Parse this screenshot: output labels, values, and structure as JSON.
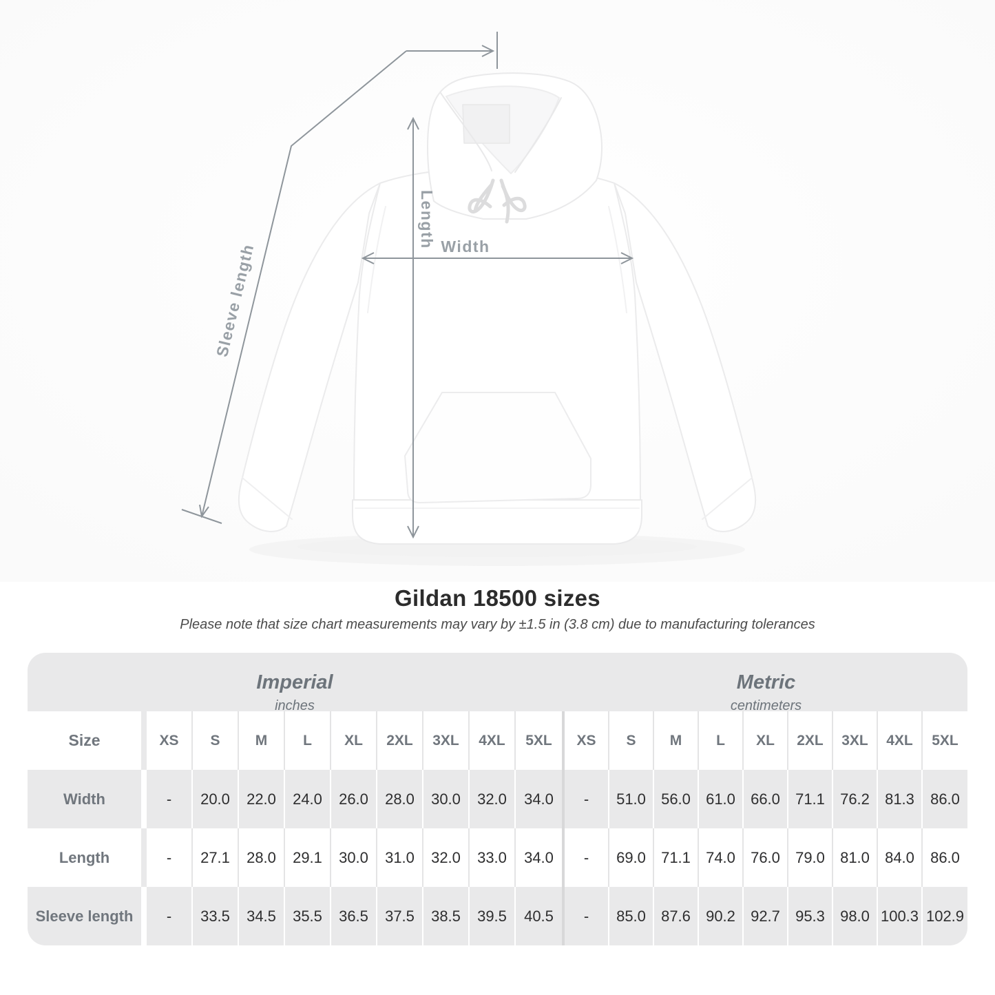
{
  "title": "Gildan 18500 sizes",
  "subtitle": "Please note that size chart measurements may vary by ±1.5 in (3.8 cm) due to manufacturing tolerances",
  "diagram": {
    "sleeve_label": "Sleeve length",
    "length_label": "Length",
    "width_label": "Width"
  },
  "table": {
    "size_header": "Size",
    "sections": [
      {
        "name": "Imperial",
        "unit": "inches"
      },
      {
        "name": "Metric",
        "unit": "centimeters"
      }
    ],
    "columns": [
      "XS",
      "S",
      "M",
      "L",
      "XL",
      "2XL",
      "3XL",
      "4XL",
      "5XL"
    ],
    "rows": [
      {
        "label": "Width",
        "imperial": [
          "-",
          "20.0",
          "22.0",
          "24.0",
          "26.0",
          "28.0",
          "30.0",
          "32.0",
          "34.0"
        ],
        "metric": [
          "-",
          "51.0",
          "56.0",
          "61.0",
          "66.0",
          "71.1",
          "76.2",
          "81.3",
          "86.0"
        ]
      },
      {
        "label": "Length",
        "imperial": [
          "-",
          "27.1",
          "28.0",
          "29.1",
          "30.0",
          "31.0",
          "32.0",
          "33.0",
          "34.0"
        ],
        "metric": [
          "-",
          "69.0",
          "71.1",
          "74.0",
          "76.0",
          "79.0",
          "81.0",
          "84.0",
          "86.0"
        ]
      },
      {
        "label": "Sleeve length",
        "imperial": [
          "-",
          "33.5",
          "34.5",
          "35.5",
          "36.5",
          "37.5",
          "38.5",
          "39.5",
          "40.5"
        ],
        "metric": [
          "-",
          "85.0",
          "87.6",
          "90.2",
          "92.7",
          "95.3",
          "98.0",
          "100.3",
          "102.9"
        ]
      }
    ]
  },
  "colors": {
    "band_gray": "#e9e9ea",
    "divider_gray": "#d8d8d9",
    "header_text": "#70767d",
    "value_text": "#2e2e2f",
    "measure_line": "#8e959b",
    "measure_label": "#99a0a6"
  }
}
